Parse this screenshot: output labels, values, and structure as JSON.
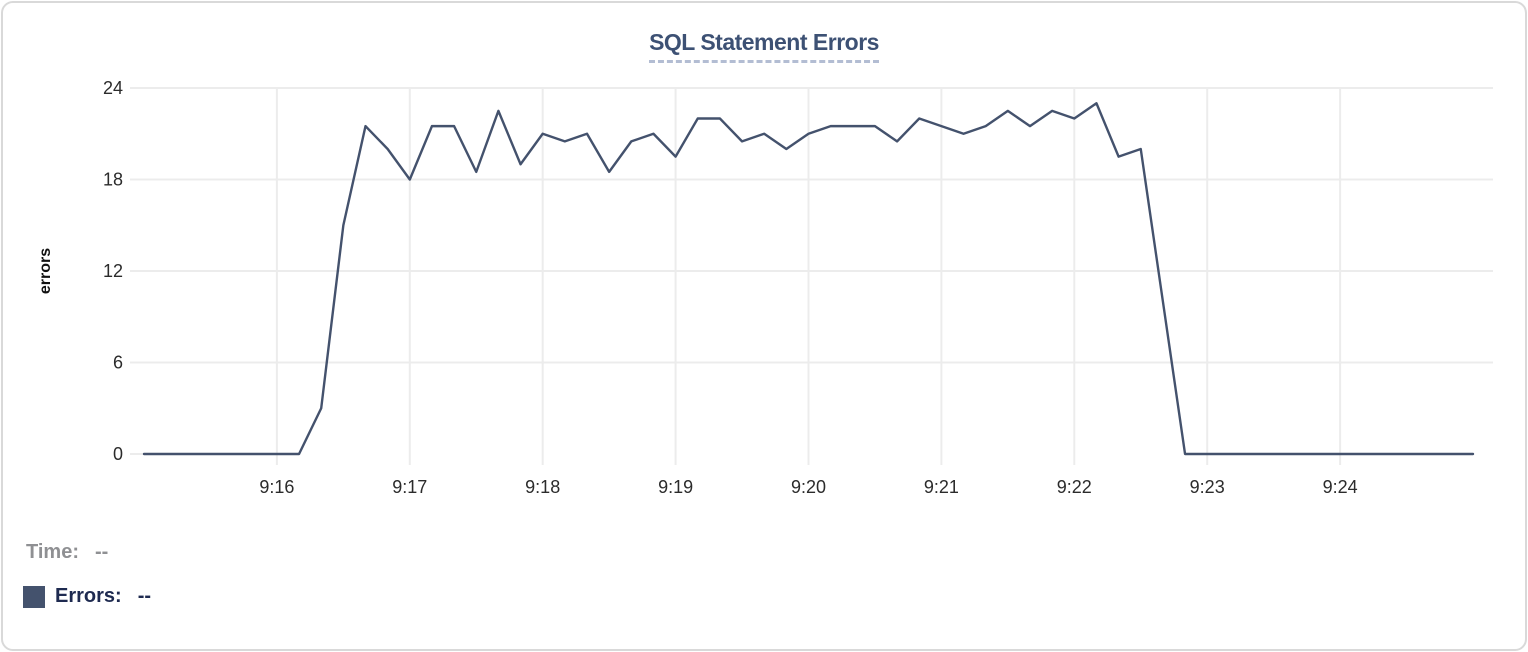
{
  "chart": {
    "title": "SQL Statement Errors"
  },
  "readout": {
    "time_label": "Time:",
    "time_value": "--",
    "errors_label": "Errors:",
    "errors_value": "--"
  },
  "colors": {
    "line": "#44526d",
    "title": "#3d5174",
    "title_underline": "#b3bdd3",
    "grid": "#ececec",
    "axis_text": "#2b2b2b",
    "time_gray": "#8f9093",
    "errors_navy": "#1e2a50",
    "card_border": "#d9d9d9",
    "background": "#ffffff"
  },
  "chart_data": {
    "type": "line",
    "title": "SQL Statement Errors",
    "xlabel": "",
    "ylabel": "errors",
    "ylim": [
      0,
      24
    ],
    "yticks": [
      0,
      6,
      12,
      18,
      24
    ],
    "xticks": [
      "9:16",
      "9:17",
      "9:18",
      "9:19",
      "9:20",
      "9:21",
      "9:22",
      "9:23",
      "9:24"
    ],
    "x_domain": [
      "9:15:00",
      "9:25:00"
    ],
    "sample_interval_seconds": 10,
    "grid": true,
    "legend_position": "bottom-left",
    "series": [
      {
        "name": "Errors",
        "color": "#44526d",
        "x": [
          "9:15:00",
          "9:15:10",
          "9:15:20",
          "9:15:30",
          "9:15:40",
          "9:15:50",
          "9:16:00",
          "9:16:10",
          "9:16:20",
          "9:16:30",
          "9:16:40",
          "9:16:50",
          "9:17:00",
          "9:17:10",
          "9:17:20",
          "9:17:30",
          "9:17:40",
          "9:17:50",
          "9:18:00",
          "9:18:10",
          "9:18:20",
          "9:18:30",
          "9:18:40",
          "9:18:50",
          "9:19:00",
          "9:19:10",
          "9:19:20",
          "9:19:30",
          "9:19:40",
          "9:19:50",
          "9:20:00",
          "9:20:10",
          "9:20:20",
          "9:20:30",
          "9:20:40",
          "9:20:50",
          "9:21:00",
          "9:21:10",
          "9:21:20",
          "9:21:30",
          "9:21:40",
          "9:21:50",
          "9:22:00",
          "9:22:10",
          "9:22:20",
          "9:22:30",
          "9:22:40",
          "9:22:50",
          "9:23:00",
          "9:23:10",
          "9:23:20",
          "9:23:30",
          "9:23:40",
          "9:23:50",
          "9:24:00",
          "9:24:10",
          "9:24:20",
          "9:24:30",
          "9:24:40",
          "9:24:50",
          "9:25:00"
        ],
        "values": [
          0,
          0,
          0,
          0,
          0,
          0,
          0,
          0,
          3,
          15,
          21.5,
          20,
          18,
          21.5,
          21.5,
          18.5,
          22.5,
          19,
          21,
          20.5,
          21,
          18.5,
          20.5,
          21,
          19.5,
          22,
          22,
          20.5,
          21,
          20,
          21,
          21.5,
          21.5,
          21.5,
          20.5,
          22,
          21.5,
          21,
          21.5,
          22.5,
          21.5,
          22.5,
          22,
          23,
          19.5,
          20,
          10,
          0,
          0,
          0,
          0,
          0,
          0,
          0,
          0,
          0,
          0,
          0,
          0,
          0,
          0
        ]
      }
    ]
  }
}
